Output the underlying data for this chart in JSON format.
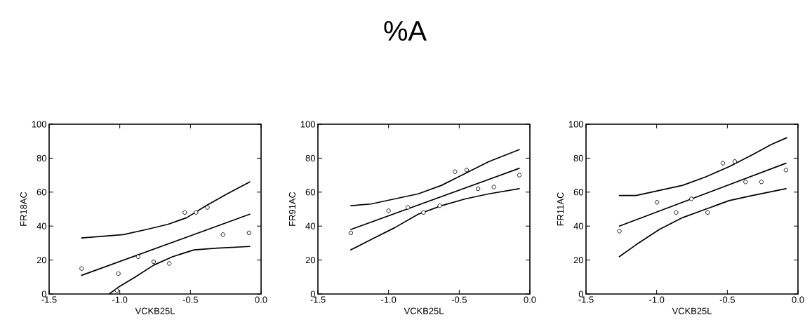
{
  "chart_data": [
    {
      "type": "scatter",
      "xlabel": "VCKB25L",
      "ylabel": "FR18AC",
      "xlim": [
        -1.5,
        0
      ],
      "ylim": [
        0,
        100
      ],
      "xticks": [
        {
          "value": -1.5,
          "label": "-1.5"
        },
        {
          "value": -1,
          "label": "-1.0"
        },
        {
          "value": -0.5,
          "label": "-0.5"
        },
        {
          "value": 0,
          "label": "0.0"
        }
      ],
      "yticks": [
        0,
        20,
        40,
        60,
        80,
        100
      ],
      "series": [
        {
          "marker": "circle",
          "color": "#000000",
          "x": [
            -1.27,
            -1.02,
            -1.01,
            -0.87,
            -0.76,
            -0.65,
            -0.54,
            -0.46,
            -0.38,
            -0.27,
            -0.085
          ],
          "values": [
            15,
            2,
            12,
            22,
            19,
            18,
            48,
            48,
            51,
            35,
            36
          ]
        },
        {
          "type": "line",
          "color": "#000000",
          "x": [
            -1.27,
            -0.08
          ],
          "values": [
            11,
            47
          ]
        },
        {
          "type": "line",
          "color": "#000000",
          "x": [
            -1.27,
            -0.975,
            -0.81,
            -0.66,
            -0.525,
            -0.39,
            -0.24,
            -0.08
          ],
          "values": [
            33,
            35,
            38,
            41,
            45,
            52,
            59,
            66
          ]
        },
        {
          "type": "line",
          "color": "#000000",
          "x": [
            -1.075,
            -1.01,
            -0.89,
            -0.76,
            -0.625,
            -0.475,
            -0.31,
            -0.08
          ],
          "values": [
            0,
            4,
            10,
            17,
            22,
            26,
            27,
            28
          ]
        }
      ]
    },
    {
      "type": "scatter",
      "title": "%A",
      "xlabel": "VCKB25L",
      "ylabel": "FR91AC",
      "xlim": [
        -1.5,
        0
      ],
      "ylim": [
        0,
        100
      ],
      "xticks": [
        {
          "value": -1.5,
          "label": "-1.5"
        },
        {
          "value": -1,
          "label": "-1.0"
        },
        {
          "value": -0.5,
          "label": "-0.5"
        },
        {
          "value": 0,
          "label": "0.0"
        }
      ],
      "yticks": [
        0,
        20,
        40,
        60,
        80,
        100
      ],
      "series": [
        {
          "marker": "circle",
          "color": "#000000",
          "x": [
            -1.267,
            -1.0,
            -0.863,
            -0.753,
            -0.638,
            -0.53,
            -0.447,
            -0.367,
            -0.255,
            -0.075
          ],
          "values": [
            36,
            49,
            51,
            48,
            52,
            72,
            73,
            62,
            63,
            70
          ]
        },
        {
          "type": "line",
          "color": "#000000",
          "x": [
            -1.267,
            -0.075
          ],
          "values": [
            38,
            74
          ]
        },
        {
          "type": "line",
          "color": "#000000",
          "x": [
            -1.267,
            -1.125,
            -0.958,
            -0.79,
            -0.625,
            -0.458,
            -0.29,
            -0.075
          ],
          "values": [
            52,
            53,
            56,
            59,
            64,
            71,
            78,
            85
          ]
        },
        {
          "type": "line",
          "color": "#000000",
          "x": [
            -1.267,
            -1.125,
            -0.958,
            -0.79,
            -0.625,
            -0.458,
            -0.29,
            -0.075
          ],
          "values": [
            26,
            32,
            39,
            47,
            52,
            56,
            59,
            62
          ]
        }
      ]
    },
    {
      "type": "scatter",
      "xlabel": "VCKB25L",
      "ylabel": "FR11AC",
      "xlim": [
        -1.5,
        0
      ],
      "ylim": [
        0,
        100
      ],
      "xticks": [
        {
          "value": -1.5,
          "label": "-1.5"
        },
        {
          "value": -1,
          "label": "-1.0"
        },
        {
          "value": -0.5,
          "label": "-0.5"
        },
        {
          "value": 0,
          "label": "0.0"
        }
      ],
      "yticks": [
        0,
        20,
        40,
        60,
        80,
        100
      ],
      "series": [
        {
          "marker": "circle",
          "color": "#000000",
          "x": [
            -1.264,
            -0.998,
            -0.862,
            -0.754,
            -0.64,
            -0.531,
            -0.447,
            -0.371,
            -0.259,
            -0.085
          ],
          "values": [
            37,
            54,
            48,
            56,
            48,
            77,
            78,
            66,
            66,
            73
          ]
        },
        {
          "type": "line",
          "color": "#000000",
          "x": [
            -1.264,
            -0.085
          ],
          "values": [
            40,
            77
          ]
        },
        {
          "type": "line",
          "color": "#000000",
          "x": [
            -1.264,
            -1.146,
            -0.981,
            -0.816,
            -0.652,
            -0.487,
            -0.322,
            -0.19,
            -0.08
          ],
          "values": [
            58,
            58,
            61,
            64,
            69,
            75,
            82,
            88,
            92
          ]
        },
        {
          "type": "line",
          "color": "#000000",
          "x": [
            -1.264,
            -1.146,
            -0.981,
            -0.816,
            -0.652,
            -0.487,
            -0.322,
            -0.085
          ],
          "values": [
            22,
            29,
            38,
            45,
            50,
            55,
            58,
            62
          ]
        }
      ]
    }
  ]
}
